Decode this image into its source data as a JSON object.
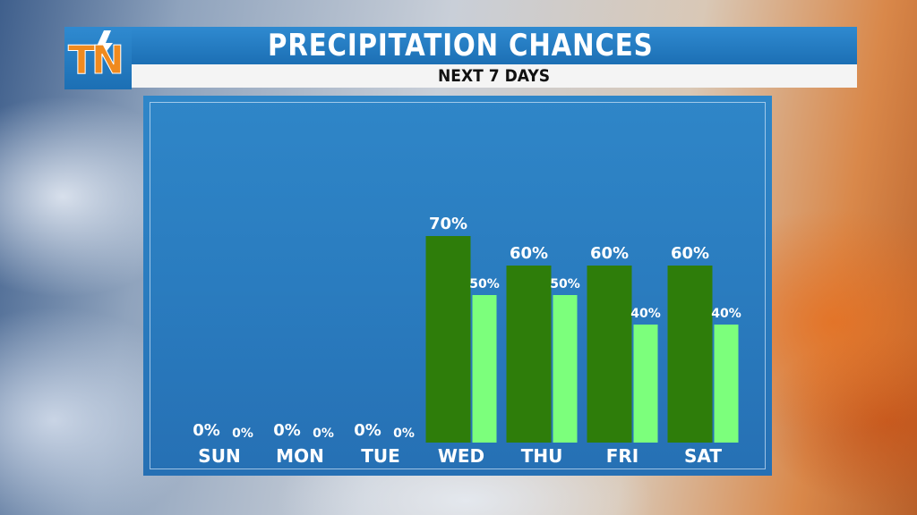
{
  "header": {
    "title": "PRECIPITATION CHANCES",
    "subtitle": "NEXT 7 DAYS",
    "logo_text": "TN"
  },
  "chart_data": {
    "type": "bar",
    "title": "PRECIPITATION CHANCES",
    "subtitle": "NEXT 7 DAYS",
    "categories": [
      "SUN",
      "MON",
      "TUE",
      "WED",
      "THU",
      "FRI",
      "SAT"
    ],
    "series": [
      {
        "values": [
          0,
          0,
          0,
          70,
          60,
          60,
          60
        ],
        "color": "#2e7d0a"
      },
      {
        "values": [
          0,
          0,
          0,
          50,
          50,
          40,
          40
        ],
        "color": "#7cff7c"
      }
    ],
    "labels": [
      [
        "0%",
        "0%",
        "0%",
        "70%",
        "60%",
        "60%",
        "60%"
      ],
      [
        "0%",
        "0%",
        "0%",
        "50%",
        "50%",
        "40%",
        "40%"
      ]
    ],
    "ylim": [
      0,
      100
    ],
    "grid": false,
    "legend": "none"
  }
}
